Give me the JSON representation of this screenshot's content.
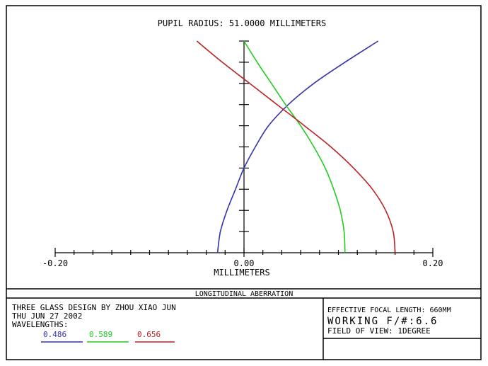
{
  "chart_data": {
    "type": "line",
    "title": "PUPIL RADIUS: 51.0000 MILLIMETERS",
    "xlabel": "MILLIMETERS",
    "ylabel": "",
    "xlim": [
      -0.2,
      0.2
    ],
    "ylim": [
      0,
      1
    ],
    "x_ticks": [
      -0.2,
      0.0,
      0.2
    ],
    "x_tick_labels": [
      "-0.20",
      "0.00",
      "0.20"
    ],
    "grid": false,
    "x_axis_position": "bottom",
    "y_axis_position": "x=0",
    "series": [
      {
        "name": "0.486",
        "color": "#3333aa",
        "points": [
          {
            "x": -0.028,
            "y": 0.0
          },
          {
            "x": -0.025,
            "y": 0.1
          },
          {
            "x": -0.018,
            "y": 0.2
          },
          {
            "x": -0.009,
            "y": 0.3
          },
          {
            "x": 0.0,
            "y": 0.4
          },
          {
            "x": 0.012,
            "y": 0.5
          },
          {
            "x": 0.026,
            "y": 0.6
          },
          {
            "x": 0.047,
            "y": 0.7
          },
          {
            "x": 0.074,
            "y": 0.8
          },
          {
            "x": 0.107,
            "y": 0.9
          },
          {
            "x": 0.142,
            "y": 1.0
          }
        ]
      },
      {
        "name": "0.589",
        "color": "#22cc22",
        "points": [
          {
            "x": 0.0,
            "y": 1.0
          },
          {
            "x": 0.014,
            "y": 0.9
          },
          {
            "x": 0.029,
            "y": 0.8
          },
          {
            "x": 0.044,
            "y": 0.7
          },
          {
            "x": 0.06,
            "y": 0.6
          },
          {
            "x": 0.074,
            "y": 0.5
          },
          {
            "x": 0.086,
            "y": 0.4
          },
          {
            "x": 0.095,
            "y": 0.3
          },
          {
            "x": 0.102,
            "y": 0.2
          },
          {
            "x": 0.106,
            "y": 0.1
          },
          {
            "x": 0.107,
            "y": 0.0
          }
        ]
      },
      {
        "name": "0.656",
        "color": "#bb2222",
        "points": [
          {
            "x": -0.05,
            "y": 1.0
          },
          {
            "x": -0.023,
            "y": 0.9
          },
          {
            "x": 0.006,
            "y": 0.8
          },
          {
            "x": 0.035,
            "y": 0.7
          },
          {
            "x": 0.064,
            "y": 0.6
          },
          {
            "x": 0.092,
            "y": 0.5
          },
          {
            "x": 0.116,
            "y": 0.4
          },
          {
            "x": 0.136,
            "y": 0.3
          },
          {
            "x": 0.15,
            "y": 0.2
          },
          {
            "x": 0.158,
            "y": 0.1
          },
          {
            "x": 0.16,
            "y": 0.0
          }
        ]
      }
    ]
  },
  "title_block": {
    "heading": "LONGITUDINAL ABERRATION",
    "design_line": "THREE GLASS DESIGN  BY ZHOU XIAO JUN",
    "date_line": "THU JUN 27 2002",
    "wavelengths_label": "WAVELENGTHS:",
    "wavelengths": [
      {
        "value": "0.486",
        "color": "#3333aa"
      },
      {
        "value": "0.589",
        "color": "#22cc22"
      },
      {
        "value": "0.656",
        "color": "#bb2222"
      }
    ],
    "effective_focal_length": "EFFECTIVE FOCAL LENGTH: 660MM",
    "working_fnumber": "WORKING F/#:6.6",
    "field_of_view": "FIELD OF VIEW: 1DEGREE"
  }
}
